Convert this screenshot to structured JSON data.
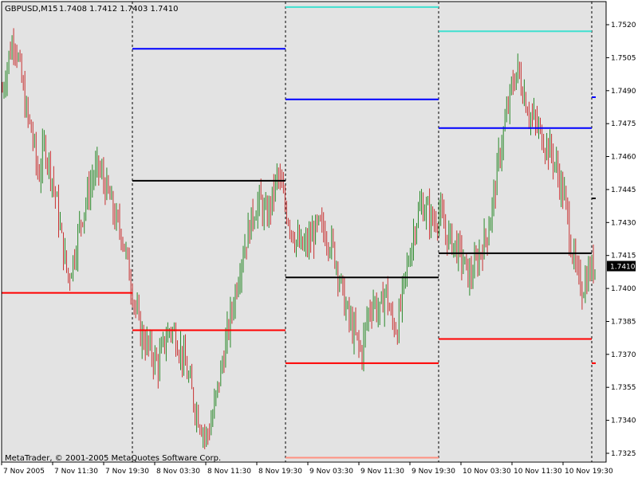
{
  "symbol_title": "GBPUSD,M15",
  "ohlc_readout": "1.7408 1.7412 1.7403 1.7410",
  "copyright": "MetaTrader, © 2001-2005 MetaQuotes Software Corp.",
  "colors": {
    "background": "#e3e3e3",
    "bull_candle": "#2a8a2a",
    "bear_candle": "#c83232",
    "resistance_far": "#40e0d0",
    "resistance_near": "#0000ff",
    "pivot": "#000000",
    "support": "#ff0000",
    "support_far": "#ff9080",
    "separator": "#000000",
    "current_price_bg": "#000000"
  },
  "chart_data": {
    "type": "candlestick",
    "symbol": "GBPUSD",
    "timeframe": "M15",
    "current_price": "1.7410",
    "ylim": [
      1.732,
      1.7535
    ],
    "y_ticks": [
      "1.7520",
      "1.7505",
      "1.7490",
      "1.7475",
      "1.7460",
      "1.7445",
      "1.7430",
      "1.7415",
      "1.7400",
      "1.7385",
      "1.7370",
      "1.7355",
      "1.7340",
      "1.7325"
    ],
    "x_ticks": [
      "7 Nov 2005",
      "7 Nov 11:30",
      "7 Nov 19:30",
      "8 Nov 03:30",
      "8 Nov 11:30",
      "8 Nov 19:30",
      "9 Nov 03:30",
      "9 Nov 11:30",
      "9 Nov 19:30",
      "10 Nov 03:30",
      "10 Nov 11:30",
      "10 Nov 19:30"
    ],
    "grid": false,
    "day_separators": [
      "8 Nov 2005",
      "9 Nov 2005",
      "10 Nov 2005",
      "11 Nov 2005"
    ],
    "pivot_levels": [
      {
        "day": "7 Nov 2005",
        "S1": 1.7398
      },
      {
        "day": "8 Nov 2005",
        "R1": 1.7509,
        "P": 1.7449,
        "S1": 1.7381
      },
      {
        "day": "9 Nov 2005",
        "R2": 1.7528,
        "R1": 1.7486,
        "P": 1.7405,
        "S1": 1.7366,
        "S2": 1.7323
      },
      {
        "day": "10 Nov 2005",
        "R2": 1.7517,
        "R1": 1.7473,
        "P": 1.7416,
        "S1": 1.7377
      },
      {
        "day": "11 Nov 2005",
        "R1": 1.7487,
        "P": 1.7441,
        "S1": 1.7366
      }
    ],
    "price_path": [
      1.749,
      1.7505,
      1.7515,
      1.7498,
      1.748,
      1.747,
      1.745,
      1.7465,
      1.7455,
      1.744,
      1.742,
      1.7405,
      1.7415,
      1.743,
      1.744,
      1.745,
      1.7455,
      1.7448,
      1.744,
      1.743,
      1.7425,
      1.741,
      1.7395,
      1.738,
      1.7375,
      1.737,
      1.7365,
      1.7375,
      1.7382,
      1.7378,
      1.737,
      1.736,
      1.7348,
      1.734,
      1.7332,
      1.734,
      1.7355,
      1.737,
      1.7385,
      1.74,
      1.7415,
      1.7425,
      1.7435,
      1.744,
      1.7432,
      1.744,
      1.7452,
      1.744,
      1.743,
      1.7422,
      1.7418,
      1.742,
      1.7425,
      1.7428,
      1.7425,
      1.742,
      1.741,
      1.7395,
      1.7385,
      1.7378,
      1.737,
      1.7388,
      1.7395,
      1.7388,
      1.74,
      1.7385,
      1.7382,
      1.74,
      1.7415,
      1.743,
      1.7438,
      1.7435,
      1.743,
      1.7435,
      1.7425,
      1.7422,
      1.7418,
      1.7412,
      1.7405,
      1.741,
      1.7418,
      1.7425,
      1.744,
      1.746,
      1.7475,
      1.749,
      1.75,
      1.749,
      1.748,
      1.7475,
      1.747,
      1.7465,
      1.746,
      1.745,
      1.744,
      1.742,
      1.7405,
      1.74,
      1.7408,
      1.741
    ]
  }
}
